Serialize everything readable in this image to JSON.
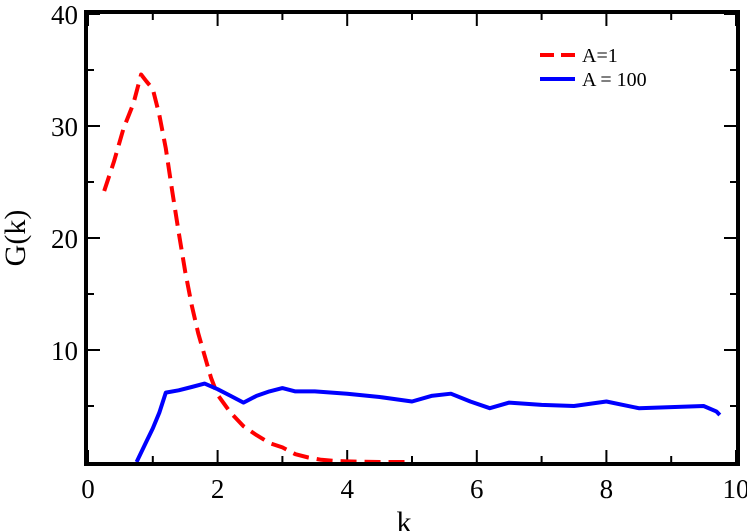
{
  "chart_data": {
    "type": "line",
    "title": "",
    "xlabel": "k",
    "ylabel": "G(k)",
    "xlim": [
      0,
      10
    ],
    "ylim": [
      0,
      40
    ],
    "x_ticks": [
      "0",
      "2",
      "4",
      "6",
      "8",
      "10"
    ],
    "y_ticks": [
      "10",
      "20",
      "30",
      "40"
    ],
    "grid": false,
    "legend_position": "top-right",
    "series": [
      {
        "name": "A=1",
        "color": "#ff0000",
        "style": "dashed",
        "x": [
          0.25,
          0.4,
          0.55,
          0.7,
          0.82,
          0.9,
          1.0,
          1.1,
          1.2,
          1.3,
          1.4,
          1.5,
          1.6,
          1.7,
          1.8,
          1.9,
          2.0,
          2.2,
          2.4,
          2.6,
          2.8,
          3.0,
          3.2,
          3.4,
          3.6,
          3.8,
          4.0,
          4.5,
          5.0
        ],
        "y": [
          24.2,
          26.8,
          29.8,
          32.0,
          34.6,
          34.0,
          33.3,
          31.0,
          28.0,
          24.2,
          20.5,
          17.0,
          14.0,
          11.5,
          9.5,
          7.5,
          6.0,
          4.4,
          3.2,
          2.4,
          1.7,
          1.3,
          0.7,
          0.4,
          0.2,
          0.1,
          0.05,
          0.0,
          0.0
        ]
      },
      {
        "name": "A = 100",
        "color": "#0000ff",
        "style": "solid",
        "x": [
          0.75,
          0.9,
          1.0,
          1.1,
          1.2,
          1.4,
          1.6,
          1.8,
          2.0,
          2.2,
          2.4,
          2.6,
          2.8,
          3.0,
          3.2,
          3.5,
          4.0,
          4.5,
          5.0,
          5.3,
          5.6,
          5.9,
          6.2,
          6.5,
          7.0,
          7.5,
          8.0,
          8.5,
          9.0,
          9.5,
          9.7,
          9.75
        ],
        "y": [
          0.0,
          1.8,
          3.0,
          4.4,
          6.2,
          6.4,
          6.7,
          7.0,
          6.5,
          5.9,
          5.3,
          5.9,
          6.3,
          6.6,
          6.3,
          6.3,
          6.1,
          5.8,
          5.4,
          5.9,
          6.1,
          5.4,
          4.8,
          5.3,
          5.1,
          5.0,
          5.4,
          4.8,
          4.9,
          5.0,
          4.5,
          4.2
        ]
      }
    ]
  }
}
